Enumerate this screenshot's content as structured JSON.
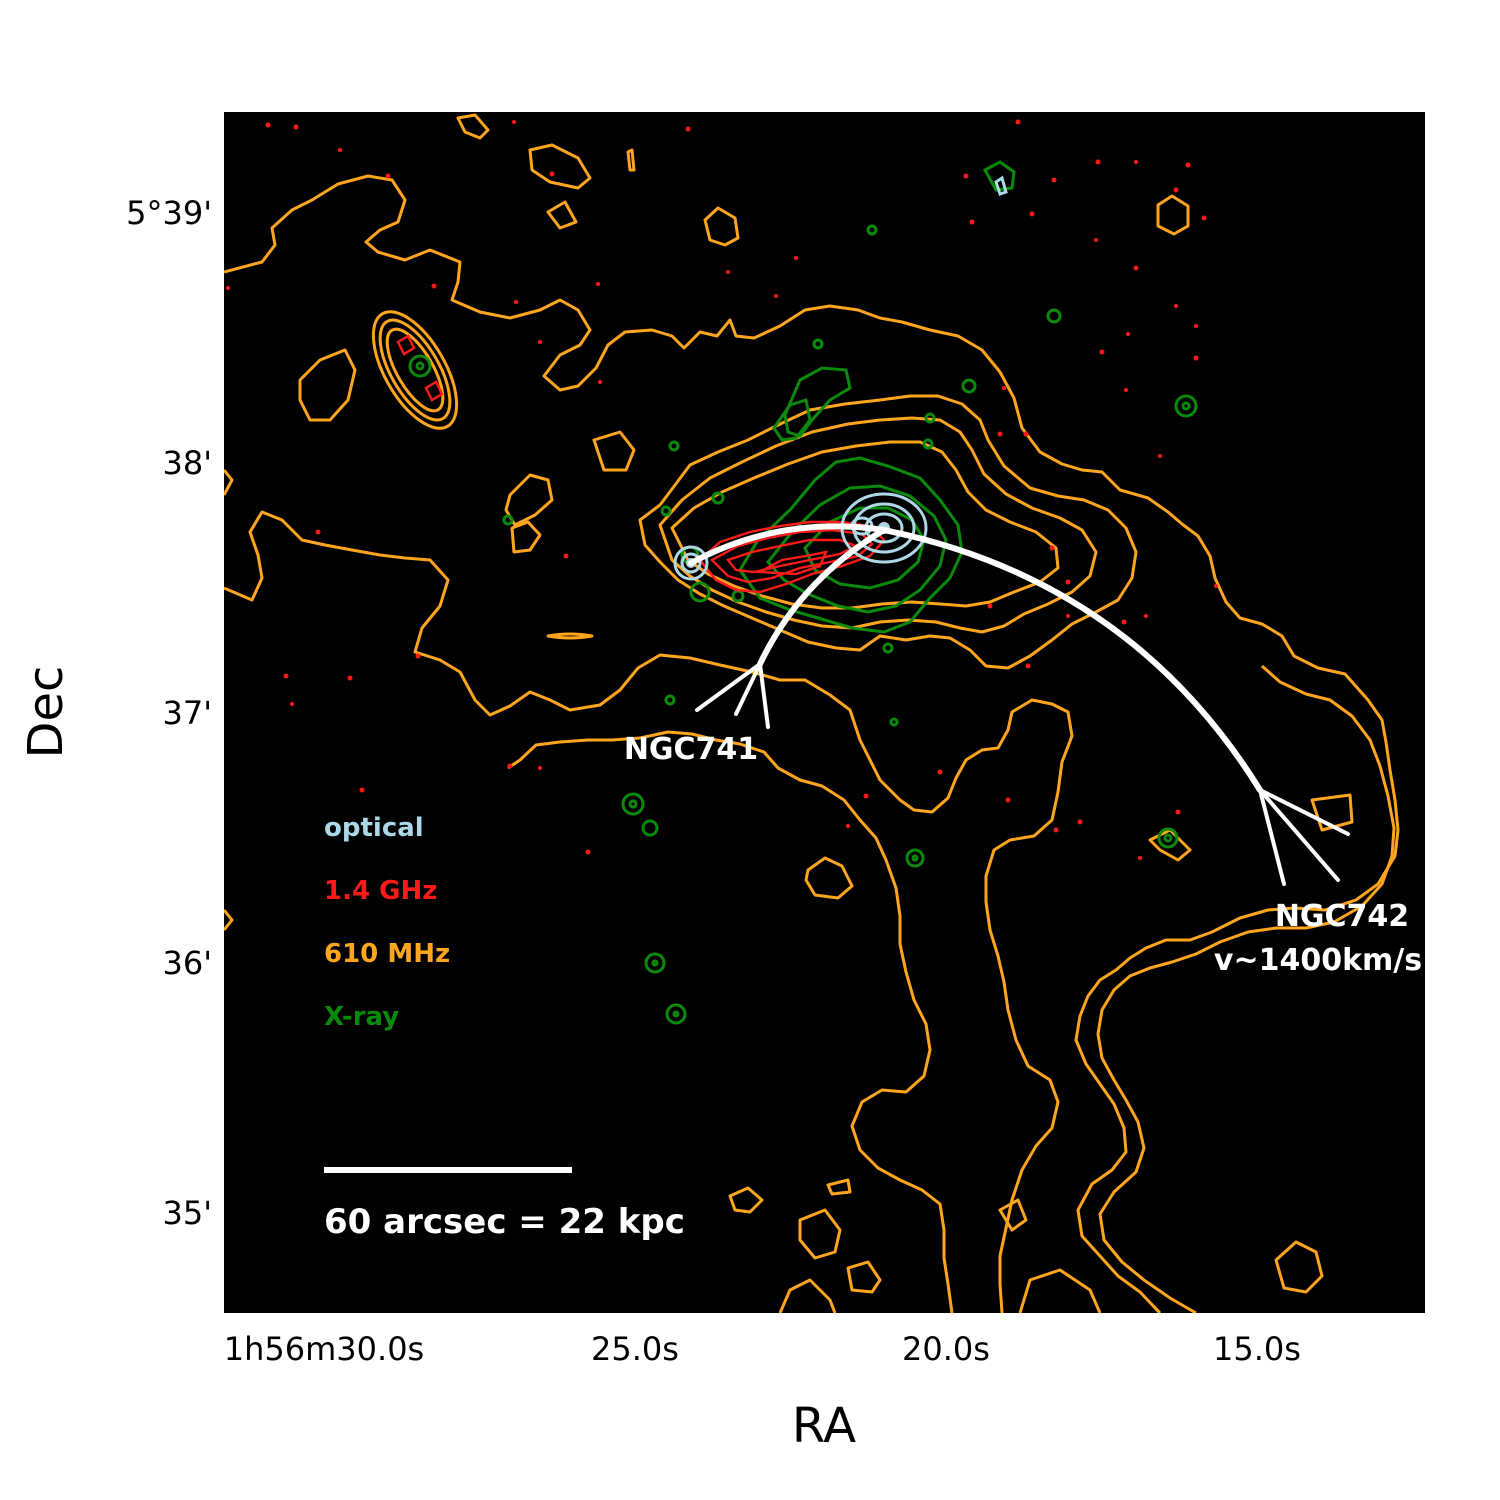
{
  "chart_data": {
    "type": "contour-overlay",
    "xlabel": "RA",
    "ylabel": "Dec",
    "x_ticks": [
      {
        "label": "1h56m30.0s",
        "ra_s": 30.0
      },
      {
        "label": "25.0s",
        "ra_s": 25.0
      },
      {
        "label": "20.0s",
        "ra_s": 20.0
      },
      {
        "label": "15.0s",
        "ra_s": 15.0
      }
    ],
    "y_ticks": [
      {
        "label": "5°39'",
        "dec_arcmin": 39
      },
      {
        "label": "38'",
        "dec_arcmin": 38
      },
      {
        "label": "37'",
        "dec_arcmin": 37
      },
      {
        "label": "36'",
        "dec_arcmin": 36
      },
      {
        "label": "35'",
        "dec_arcmin": 35
      }
    ],
    "xlim_ra_s": [
      31.6,
      12.2
    ],
    "ylim_dec_arcmin": [
      34.59,
      39.39
    ],
    "background": "#000000",
    "legend": [
      {
        "label": "optical",
        "color": "#ADD8E6"
      },
      {
        "label": "1.4 GHz",
        "color": "#FF1A1A"
      },
      {
        "label": "610 MHz",
        "color": "#FFA51E"
      },
      {
        "label": "X-ray",
        "color": "#0A8A0A"
      }
    ],
    "annotations": [
      {
        "label": "NGC741",
        "ra_s": 23.9,
        "dec_arcmin": 36.82
      },
      {
        "label": "NGC742",
        "ra_s": 14.2,
        "dec_arcmin": 36.18
      },
      {
        "label": "v~1400km/s",
        "ra_s": 14.2,
        "dec_arcmin": 35.99
      }
    ],
    "scale_bar": {
      "label": "60 arcsec = 22 kpc",
      "length_arcsec": 60
    }
  }
}
